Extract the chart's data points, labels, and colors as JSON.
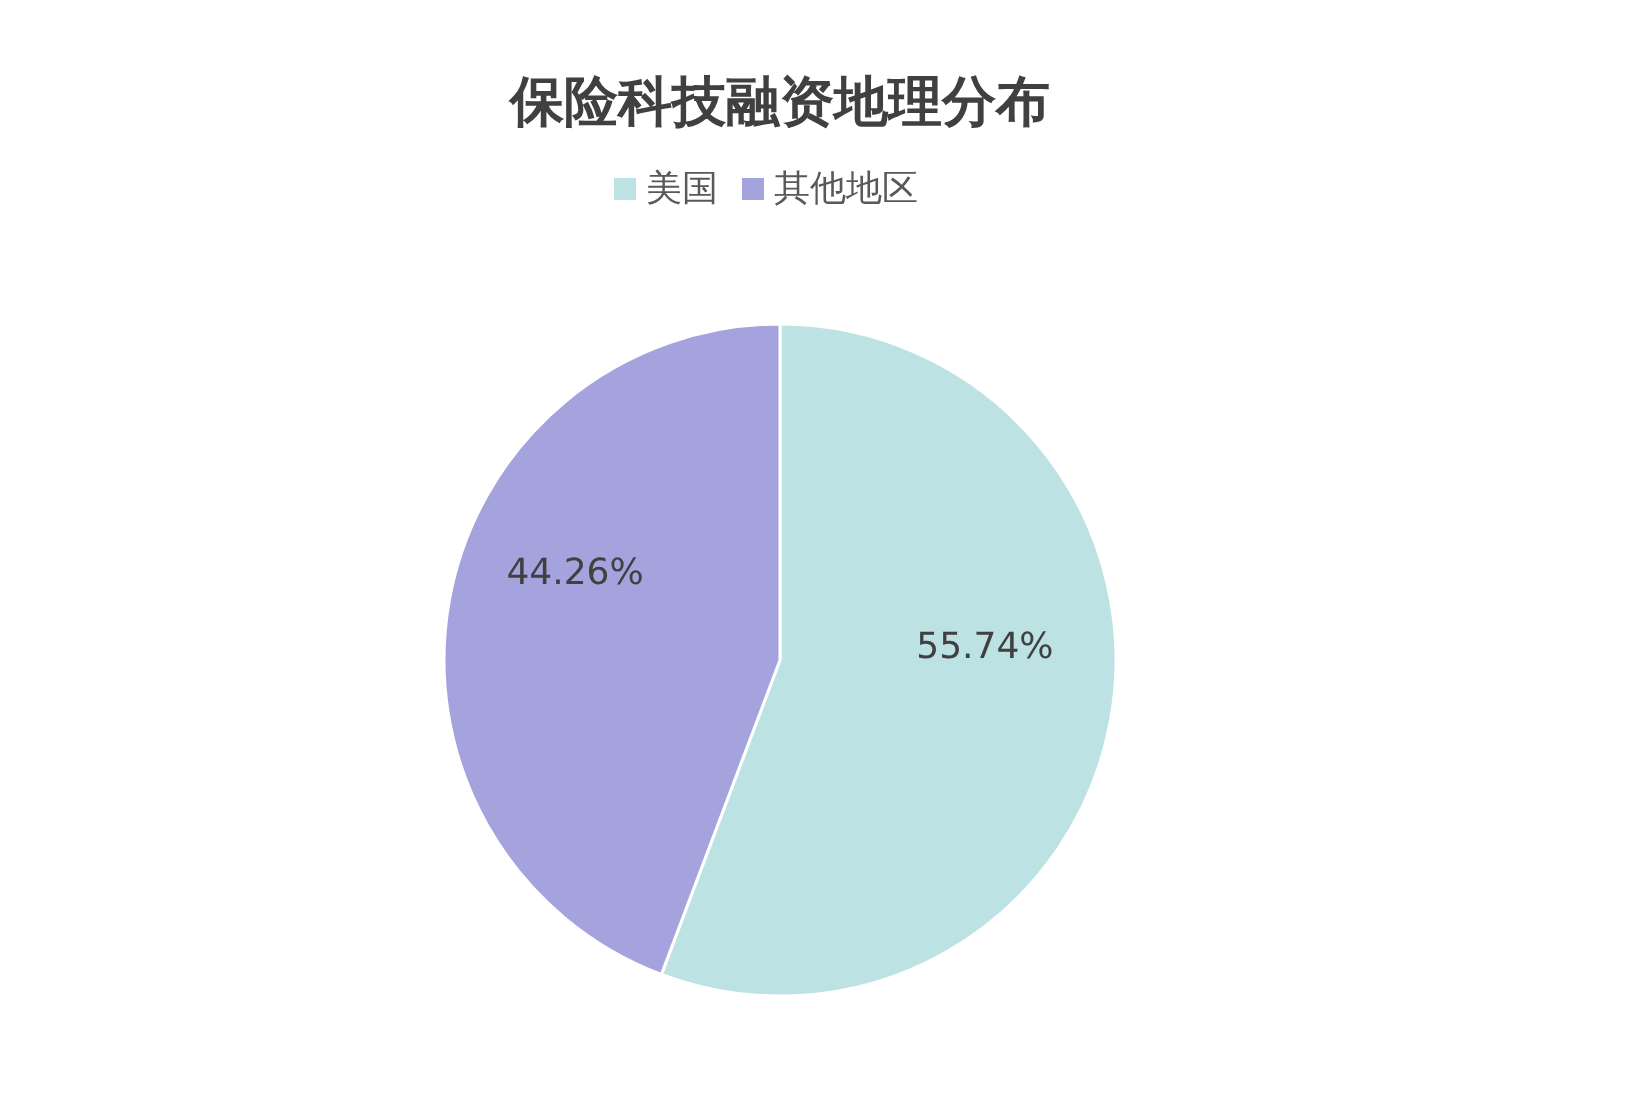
{
  "chart_data": {
    "type": "pie",
    "title": "保险科技融资地理分布",
    "categories": [
      "美国",
      "其他地区"
    ],
    "values": [
      55.74,
      44.26
    ],
    "colors": [
      "#bde2e3",
      "#a5a3de"
    ],
    "value_labels": [
      "55.74%",
      "44.26%"
    ],
    "legend": "top"
  }
}
